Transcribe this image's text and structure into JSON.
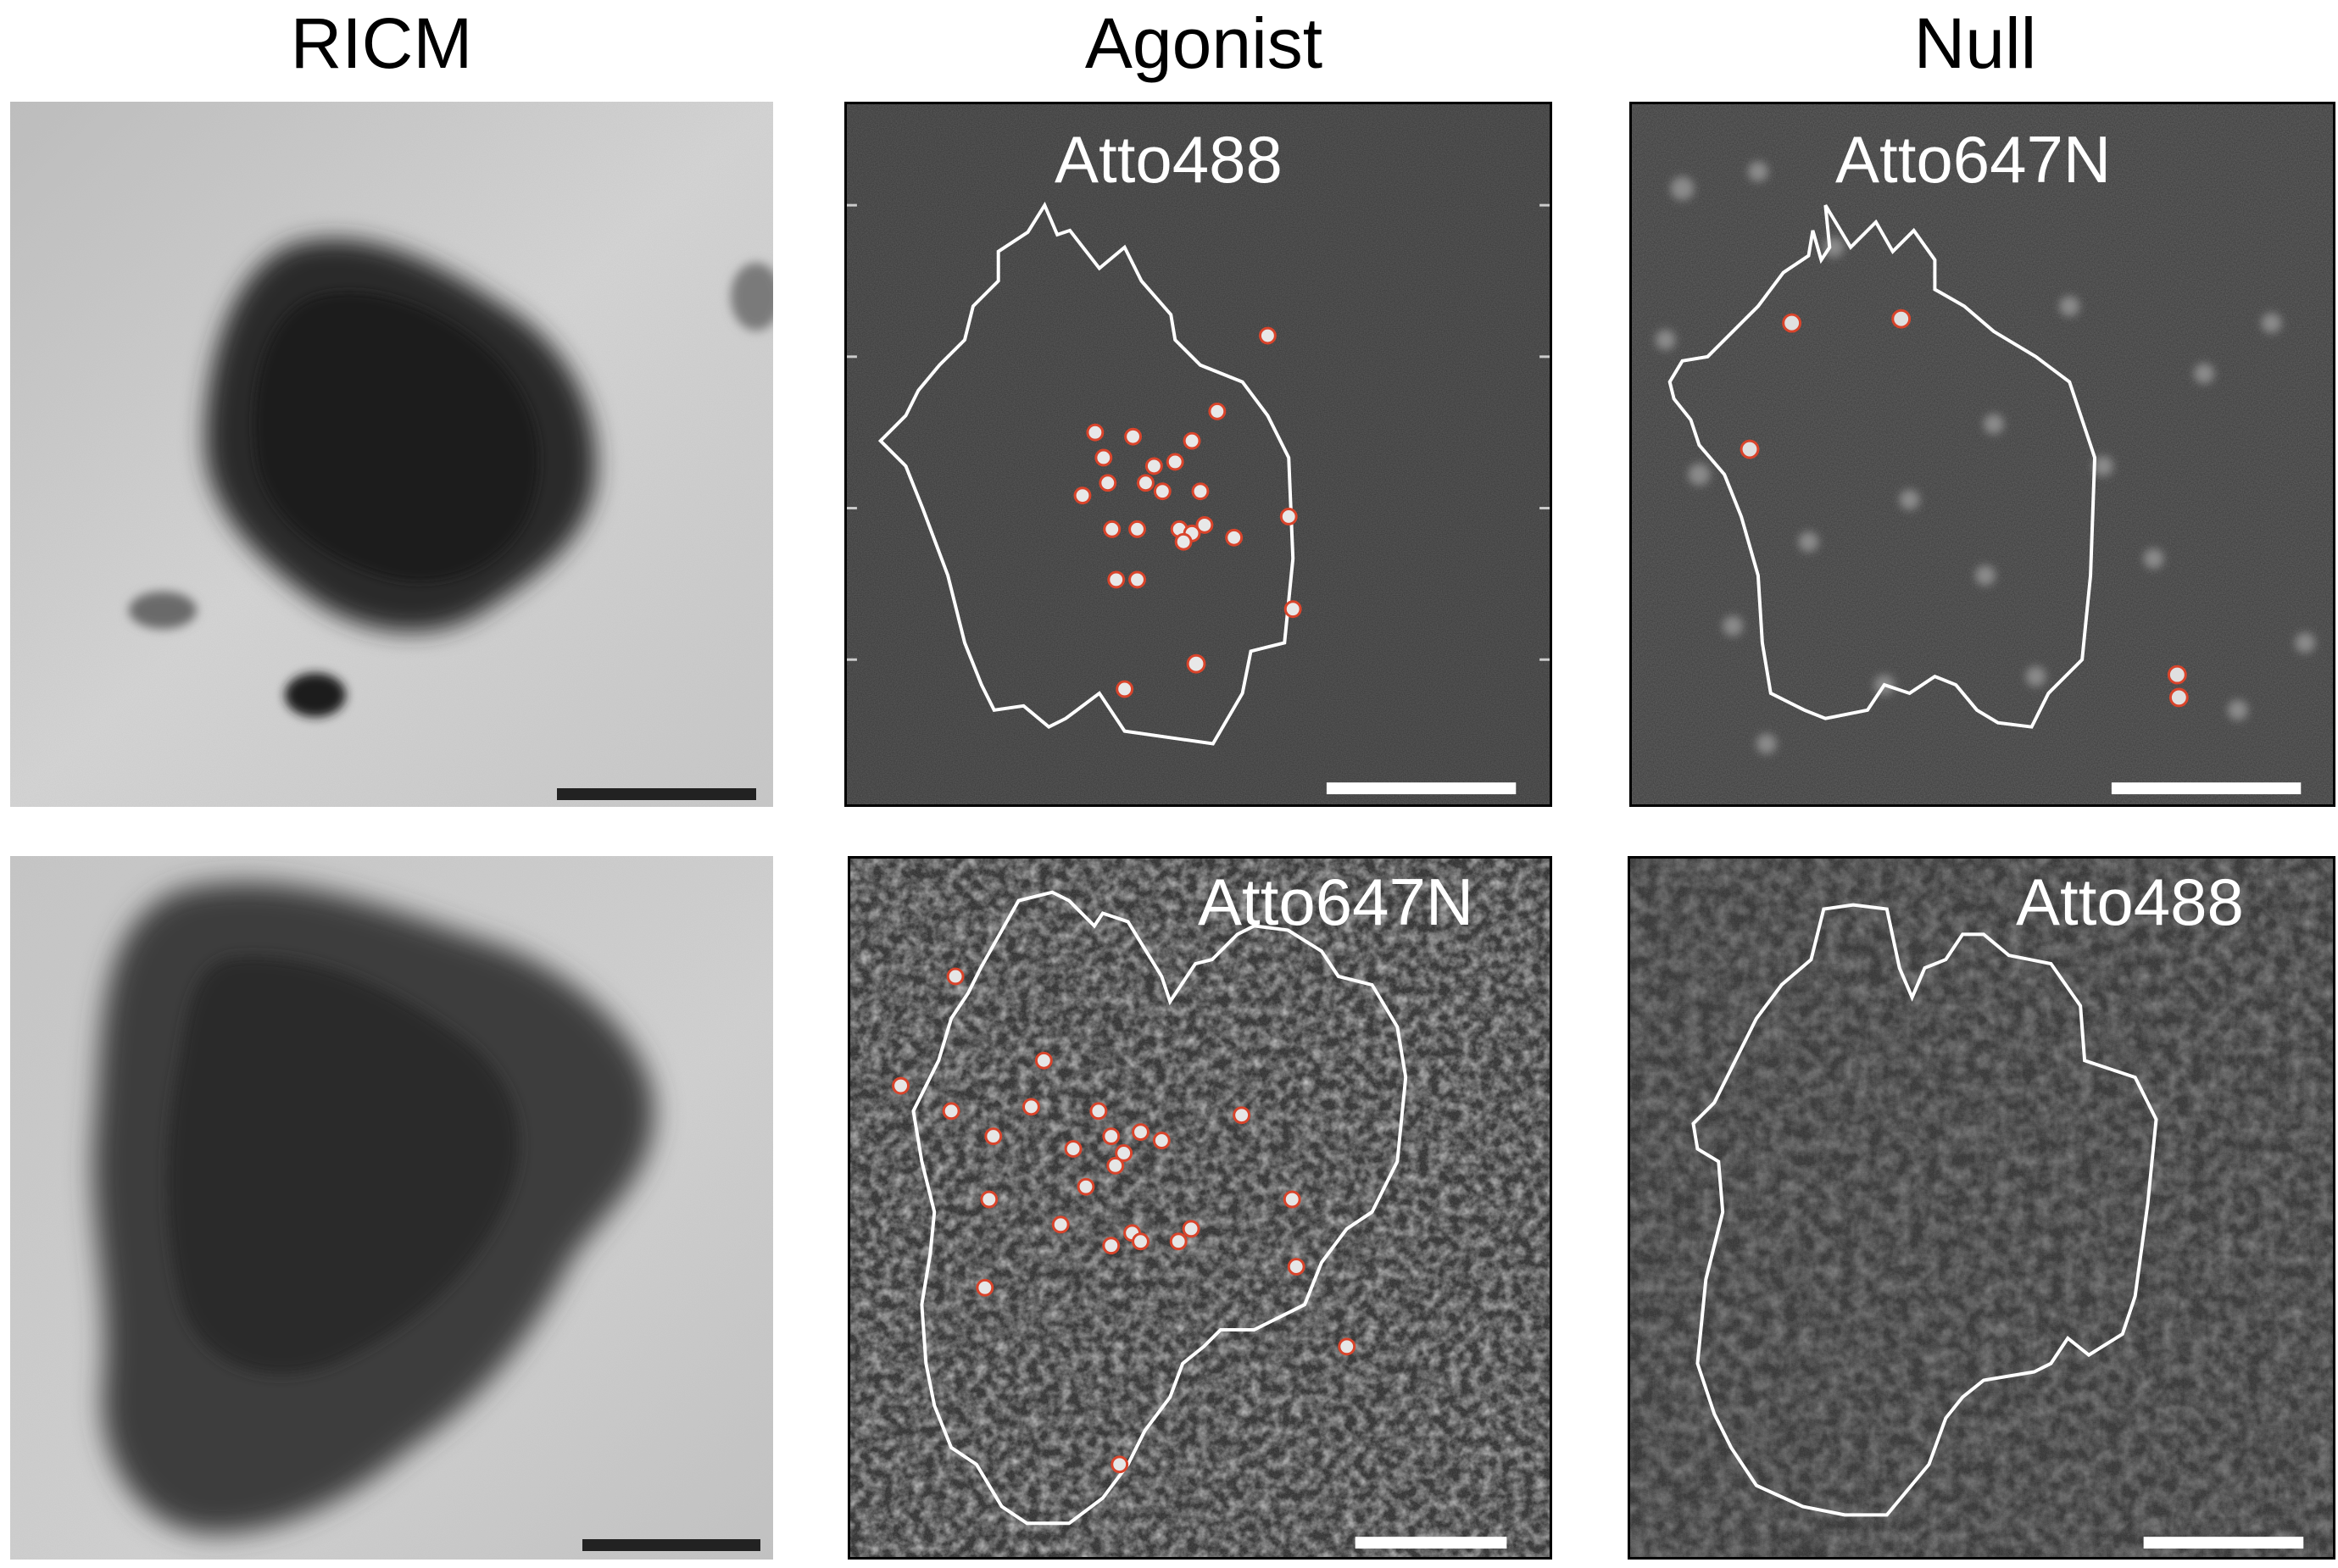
{
  "columns": [
    {
      "title": "RICM"
    },
    {
      "title": "Agonist"
    },
    {
      "title": "Null"
    }
  ],
  "panels": {
    "row1_agonist": {
      "label": "Atto488",
      "spot_count": 26
    },
    "row1_null": {
      "label": "Atto647N",
      "spot_count": 5
    },
    "row2_agonist": {
      "label": "Atto647N",
      "spot_count": 27
    },
    "row2_null": {
      "label": "Atto488",
      "spot_count": 0
    }
  },
  "colors": {
    "background": "#ffffff",
    "outline": "#ffffff",
    "spot_marker": "#d9442b",
    "fluor_background": "#3a3a3a",
    "ricm_background": "#c9c9c9",
    "scale_bar_ricm": "#222222",
    "scale_bar_fluor": "#ffffff"
  }
}
